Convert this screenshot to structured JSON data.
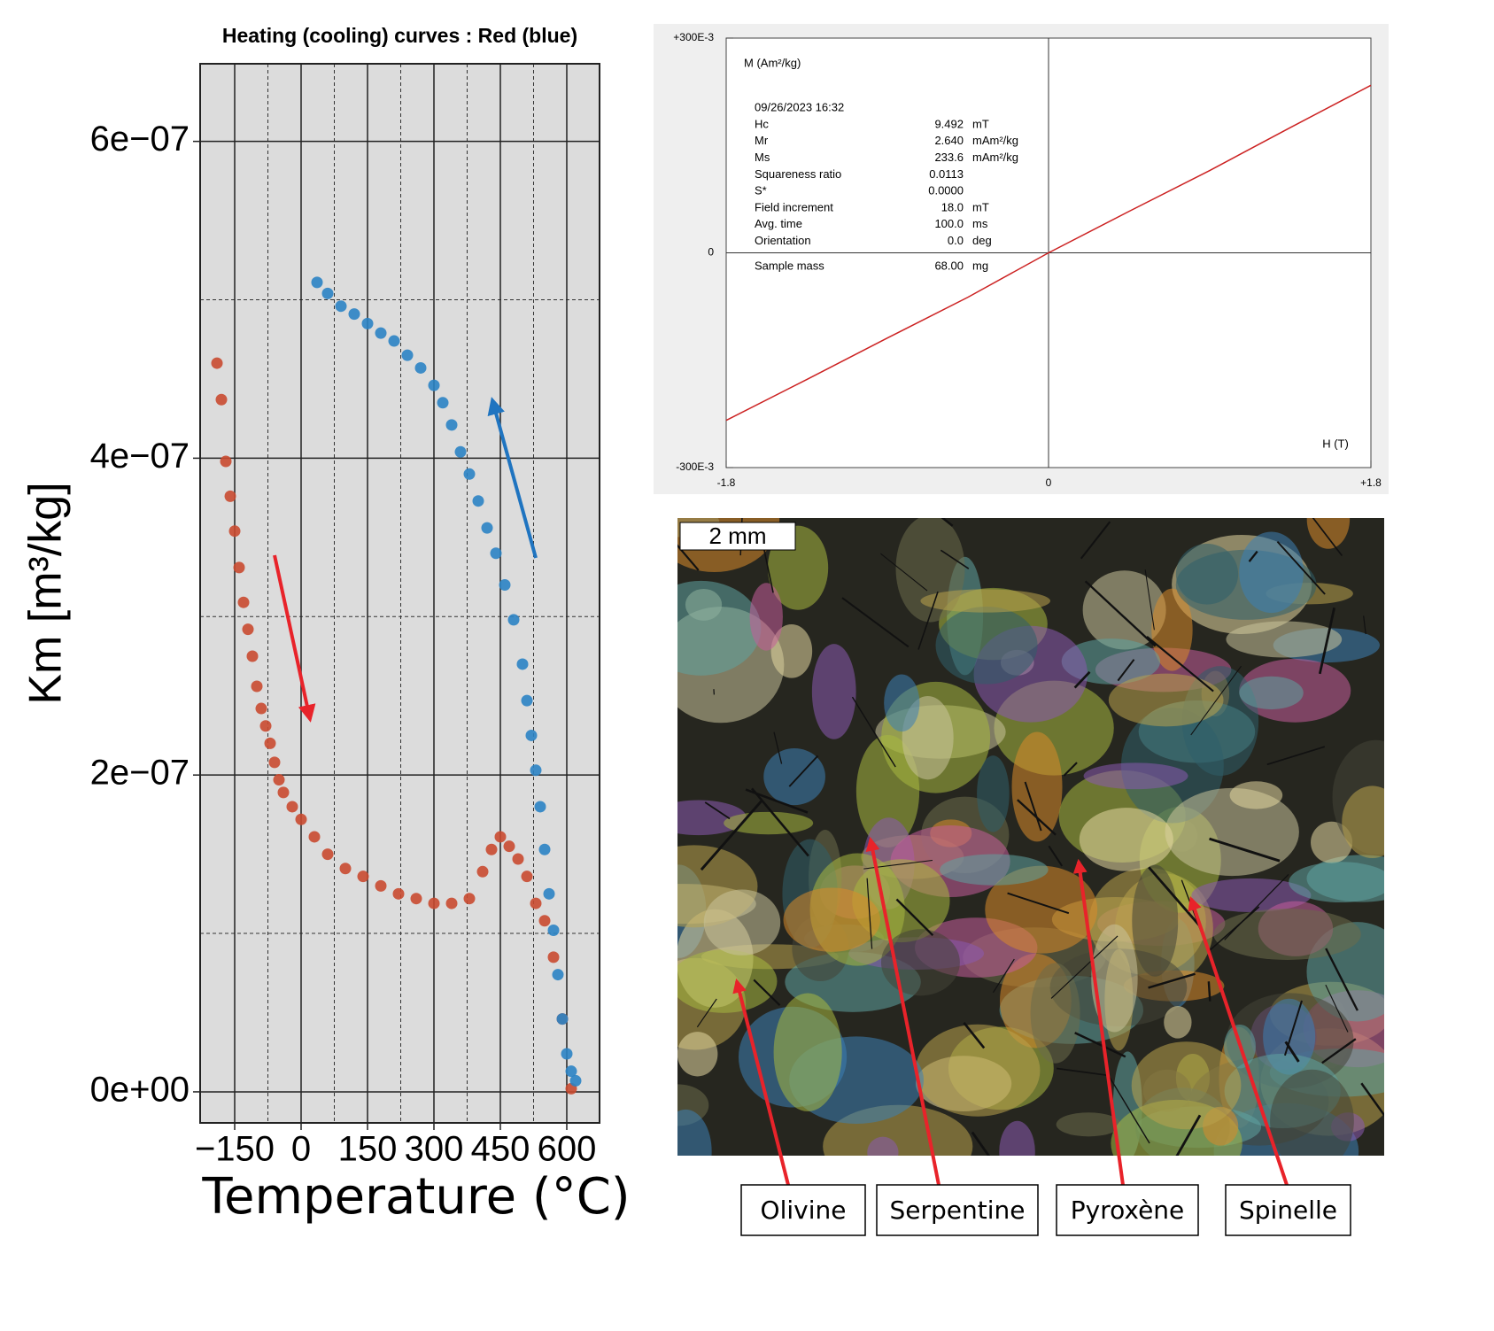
{
  "chart_data": [
    {
      "type": "scatter",
      "title": "Heating (cooling) curves : Red (blue)",
      "xlabel": "Temperature (°C)",
      "ylabel": "Km  [m³/kg]",
      "xlim": [
        -228,
        674
      ],
      "ylim": [
        -1.96e-08,
        6.49e-07
      ],
      "xticks": [
        {
          "value": -150,
          "label": "−150"
        },
        0,
        150,
        300,
        450,
        600
      ],
      "yticks": [
        {
          "value": 0,
          "label": "0e+00"
        },
        {
          "value": 2e-07,
          "label": "2e−07"
        },
        {
          "value": 4e-07,
          "label": "4e−07"
        },
        {
          "value": 6e-07,
          "label": "6e−07"
        }
      ],
      "minor_xticks": [
        -75,
        75,
        225,
        375,
        525
      ],
      "minor_yticks": [
        1e-07,
        3e-07,
        5e-07
      ],
      "grid": true,
      "series": [
        {
          "name": "Red",
          "color": "#c94a30",
          "x": [
            -190,
            -180,
            -170,
            -160,
            -150,
            -140,
            -130,
            -120,
            -110,
            -100,
            -90,
            -80,
            -70,
            -60,
            -50,
            -40,
            -20,
            0,
            30,
            60,
            100,
            140,
            180,
            220,
            260,
            300,
            340,
            380,
            410,
            430,
            450,
            470,
            490,
            510,
            530,
            550,
            570,
            590,
            610
          ],
          "values": [
            4.6e-07,
            4.37e-07,
            3.98e-07,
            3.76e-07,
            3.54e-07,
            3.31e-07,
            3.09e-07,
            2.92e-07,
            2.75e-07,
            2.56e-07,
            2.42e-07,
            2.31e-07,
            2.2e-07,
            2.08e-07,
            1.97e-07,
            1.89e-07,
            1.8e-07,
            1.72e-07,
            1.61e-07,
            1.5e-07,
            1.41e-07,
            1.36e-07,
            1.3e-07,
            1.25e-07,
            1.22e-07,
            1.19e-07,
            1.19e-07,
            1.22e-07,
            1.39e-07,
            1.53e-07,
            1.61e-07,
            1.55e-07,
            1.47e-07,
            1.36e-07,
            1.19e-07,
            1.08e-07,
            8.5e-08,
            4.6e-08,
            2e-09
          ]
        },
        {
          "name": "Blue",
          "color": "#2b83c4",
          "x": [
            36,
            60,
            90,
            120,
            150,
            180,
            210,
            240,
            270,
            300,
            320,
            340,
            360,
            380,
            400,
            420,
            440,
            460,
            480,
            500,
            510,
            520,
            530,
            540,
            550,
            560,
            570,
            580,
            590,
            600,
            610,
            620
          ],
          "values": [
            5.11e-07,
            5.04e-07,
            4.96e-07,
            4.91e-07,
            4.85e-07,
            4.79e-07,
            4.74e-07,
            4.65e-07,
            4.57e-07,
            4.46e-07,
            4.35e-07,
            4.21e-07,
            4.04e-07,
            3.9e-07,
            3.73e-07,
            3.56e-07,
            3.4e-07,
            3.2e-07,
            2.98e-07,
            2.7e-07,
            2.47e-07,
            2.25e-07,
            2.03e-07,
            1.8e-07,
            1.53e-07,
            1.25e-07,
            1.02e-07,
            7.4e-08,
            4.6e-08,
            2.4e-08,
            1.3e-08,
            7e-09
          ]
        }
      ]
    },
    {
      "type": "line",
      "ylabel": "M (Am²/kg)",
      "xlabel": "H (T)",
      "date": "09/26/2023  16:32",
      "parameters": [
        {
          "name": "Hc",
          "value": "9.492",
          "unit": "mT"
        },
        {
          "name": "Mr",
          "value": "2.640",
          "unit": "mAm²/kg"
        },
        {
          "name": "Ms",
          "value": "233.6",
          "unit": "mAm²/kg"
        },
        {
          "name": "Squareness ratio",
          "value": "0.0113"
        },
        {
          "name": "S*",
          "value": "0.0000"
        },
        {
          "name": "Field increment",
          "value": "18.0",
          "unit": "mT"
        },
        {
          "name": "Avg. time",
          "value": "100.0",
          "unit": "ms"
        },
        {
          "name": "Orientation",
          "value": "0.0",
          "unit": "deg"
        },
        {
          "name": "Sample mass",
          "value": "68.00",
          "unit": "mg"
        }
      ],
      "xlim": [
        -1.8,
        1.8
      ],
      "ylim": [
        -0.3,
        0.3
      ],
      "xticks": [
        -1.8,
        0,
        {
          "value": 1.8,
          "label": "+1.8"
        }
      ],
      "yticks": [
        {
          "value": -0.3,
          "label": "-300E-3"
        },
        0,
        {
          "value": 0.3,
          "label": "+300E-3"
        }
      ],
      "grid": false,
      "series": [
        {
          "color": "#cc2222",
          "x": [
            -1.8,
            -1.35,
            -0.9,
            -0.45,
            0,
            0.45,
            0.9,
            1.35,
            1.8
          ],
          "values": [
            -0.234,
            -0.177,
            -0.119,
            -0.062,
            0,
            0.058,
            0.115,
            0.175,
            0.234
          ]
        }
      ]
    }
  ],
  "micrograph": {
    "scale": "2 mm",
    "labels": [
      "Olivine",
      "Serpentine",
      "Pyroxène",
      "Spinelle"
    ]
  }
}
